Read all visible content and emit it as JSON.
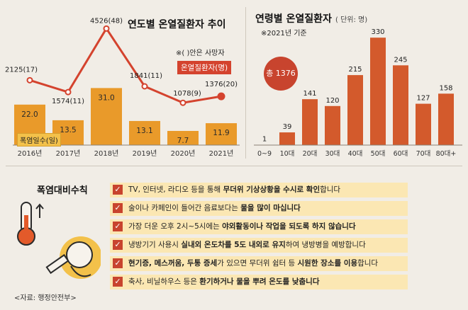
{
  "annual": {
    "title": "연도별 온열질환자 추이",
    "note": "※( )안은 사망자",
    "patients_label": "온열질환자(명)",
    "days_label": "폭염일수(일)",
    "accent": "#d4432e",
    "bar_color": "#e99a2a"
  },
  "age": {
    "title": "연령별 온열질환자",
    "unit": "( 단위: 명)",
    "note": "※2021년 기준",
    "total": "총 1376",
    "bar_color": "#d35a2c"
  },
  "chart_data": [
    {
      "type": "bar",
      "categories": [
        "2016년",
        "2017년",
        "2018년",
        "2019년",
        "2020년",
        "2021년"
      ],
      "series": [
        {
          "name": "폭염일수(일)",
          "type": "bar",
          "values": [
            22.0,
            13.5,
            31.0,
            13.1,
            7.7,
            11.9
          ]
        },
        {
          "name": "온열질환자(명)",
          "type": "line",
          "values": [
            2125,
            1574,
            4526,
            1841,
            1078,
            1376
          ],
          "deaths": [
            17,
            11,
            48,
            11,
            9,
            20
          ]
        }
      ],
      "bar_labels": [
        "22.0",
        "13.5",
        "31.0",
        "13.1",
        "7.7",
        "11.9"
      ],
      "point_labels": [
        "2125(17)",
        "1574(11)",
        "4526(48)",
        "1841(11)",
        "1078(9)",
        "1376(20)"
      ]
    },
    {
      "type": "bar",
      "categories": [
        "0~9",
        "10대",
        "20대",
        "30대",
        "40대",
        "50대",
        "60대",
        "70대",
        "80대+"
      ],
      "values": [
        1,
        39,
        141,
        120,
        215,
        330,
        245,
        127,
        158
      ]
    }
  ],
  "tips": {
    "title": "폭염대비수칙",
    "source": "<자료: 행정안전부>",
    "items": [
      {
        "a": "TV, 인터넷, 라디오 등을 통해 ",
        "b": "무더위 기상상황을 수시로 확인",
        "c": "합니다"
      },
      {
        "a": "술이나 카페인이 들어간 음료보다는 ",
        "b": "물을 많이 마십니다",
        "c": ""
      },
      {
        "a": "가장 더운 오후 2시~5시에는 ",
        "b": "야외활동이나 작업을 되도록 하지 않습니다",
        "c": ""
      },
      {
        "a": "냉방기기 사용시 ",
        "b": "실내외 온도차를 5도 내외로 유지",
        "c": "하여 냉방병을 예방합니다"
      },
      {
        "a": "",
        "b": "현기증, 메스꺼움, 두통 증세",
        "c": "가 있으면 무더위 쉼터 등 ",
        "d": "시원한 장소를 이용",
        "e": "합니다"
      },
      {
        "a": "축사, 비닐하우스 등은 ",
        "b": "환기하거나 물을 뿌려 온도를 낮춥니다",
        "c": ""
      }
    ]
  }
}
